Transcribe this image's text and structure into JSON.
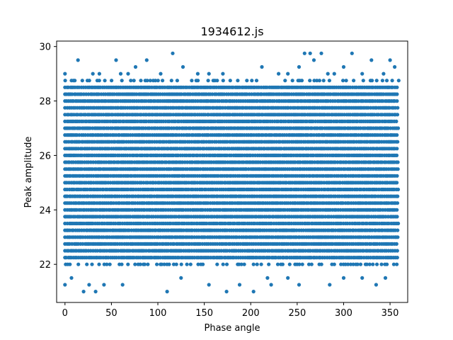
{
  "chart_data": {
    "type": "scatter",
    "title": "1934612.js",
    "xlabel": "Phase angle",
    "ylabel": "Peak amplitude",
    "xlim": [
      -9,
      369
    ],
    "ylim": [
      20.6,
      30.2
    ],
    "xticks": [
      0,
      50,
      100,
      150,
      200,
      250,
      300,
      350
    ],
    "yticks": [
      22,
      24,
      26,
      28,
      30
    ],
    "grid": false,
    "legend": false,
    "marker_color": "#1f77b4",
    "level_step": 0.25,
    "dense_range": [
      22.25,
      28.5
    ],
    "sparse_points": [
      {
        "x": 0,
        "y": 21.25
      },
      {
        "x": 7,
        "y": 21.5
      },
      {
        "x": 20,
        "y": 21.0
      },
      {
        "x": 26,
        "y": 21.25
      },
      {
        "x": 33,
        "y": 21.0
      },
      {
        "x": 42,
        "y": 21.25
      },
      {
        "x": 62,
        "y": 21.25
      },
      {
        "x": 110,
        "y": 21.0
      },
      {
        "x": 125,
        "y": 21.5
      },
      {
        "x": 155,
        "y": 21.25
      },
      {
        "x": 174,
        "y": 21.0
      },
      {
        "x": 188,
        "y": 21.25
      },
      {
        "x": 203,
        "y": 21.0
      },
      {
        "x": 218,
        "y": 21.5
      },
      {
        "x": 222,
        "y": 21.25
      },
      {
        "x": 240,
        "y": 21.5
      },
      {
        "x": 252,
        "y": 21.25
      },
      {
        "x": 285,
        "y": 21.25
      },
      {
        "x": 300,
        "y": 21.5
      },
      {
        "x": 320,
        "y": 21.5
      },
      {
        "x": 335,
        "y": 21.25
      },
      {
        "x": 345,
        "y": 21.5
      },
      {
        "x": 0,
        "y": 29.0
      },
      {
        "x": 7,
        "y": 28.75
      },
      {
        "x": 14,
        "y": 29.5
      },
      {
        "x": 30,
        "y": 29.0
      },
      {
        "x": 37,
        "y": 29.0
      },
      {
        "x": 55,
        "y": 29.5
      },
      {
        "x": 60,
        "y": 29.0
      },
      {
        "x": 68,
        "y": 29.0
      },
      {
        "x": 76,
        "y": 29.25
      },
      {
        "x": 88,
        "y": 29.5
      },
      {
        "x": 103,
        "y": 29.0
      },
      {
        "x": 116,
        "y": 29.75
      },
      {
        "x": 127,
        "y": 29.25
      },
      {
        "x": 143,
        "y": 29.0
      },
      {
        "x": 155,
        "y": 29.0
      },
      {
        "x": 170,
        "y": 29.0
      },
      {
        "x": 212,
        "y": 29.25
      },
      {
        "x": 230,
        "y": 29.0
      },
      {
        "x": 240,
        "y": 29.0
      },
      {
        "x": 252,
        "y": 29.25
      },
      {
        "x": 258,
        "y": 29.75
      },
      {
        "x": 264,
        "y": 29.75
      },
      {
        "x": 268,
        "y": 29.5
      },
      {
        "x": 276,
        "y": 29.75
      },
      {
        "x": 283,
        "y": 29.0
      },
      {
        "x": 290,
        "y": 29.0
      },
      {
        "x": 300,
        "y": 29.25
      },
      {
        "x": 309,
        "y": 29.75
      },
      {
        "x": 320,
        "y": 29.0
      },
      {
        "x": 330,
        "y": 29.5
      },
      {
        "x": 343,
        "y": 29.0
      },
      {
        "x": 350,
        "y": 29.5
      },
      {
        "x": 355,
        "y": 29.25
      }
    ]
  }
}
